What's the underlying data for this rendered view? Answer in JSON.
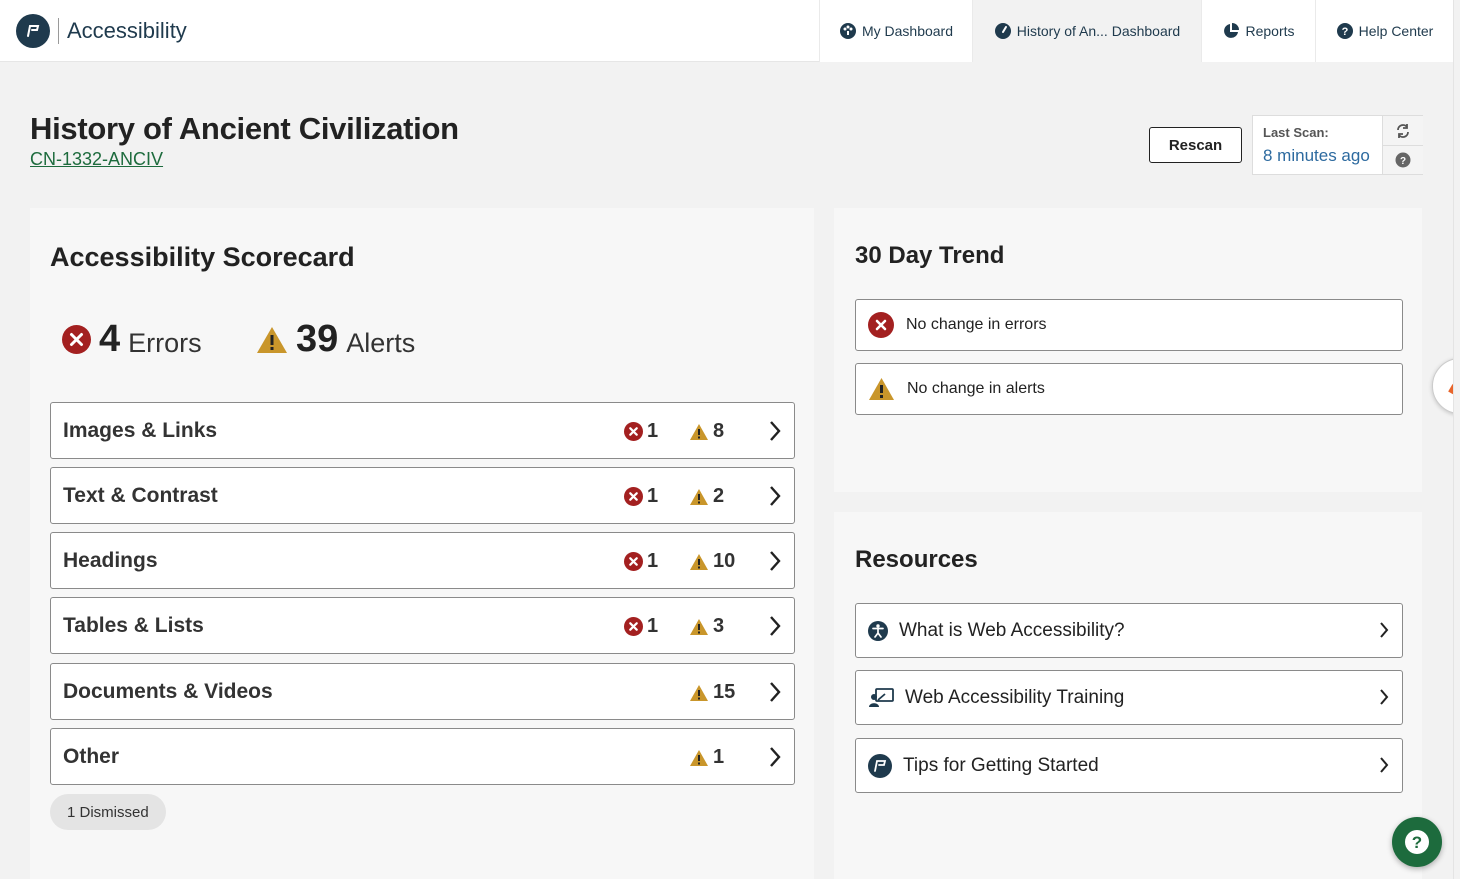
{
  "nav": {
    "brand_title": "Accessibility",
    "tabs": [
      {
        "label": "My Dashboard",
        "icon": "dashboard-icon"
      },
      {
        "label": "History of An... Dashboard",
        "icon": "gauge-icon"
      },
      {
        "label": "Reports",
        "icon": "pie-chart-icon"
      },
      {
        "label": "Help Center",
        "icon": "question-circle-icon"
      }
    ]
  },
  "header": {
    "title": "History of Ancient Civilization",
    "course_code": "CN-1332-ANCIV",
    "rescan_label": "Rescan",
    "last_scan_label": "Last Scan:",
    "last_scan_value": "8 minutes ago"
  },
  "scorecard": {
    "title": "Accessibility Scorecard",
    "errors_count": "4",
    "errors_word": "Errors",
    "alerts_count": "39",
    "alerts_word": "Alerts",
    "categories": [
      {
        "name": "Images & Links",
        "errors": "1",
        "alerts": "8"
      },
      {
        "name": "Text & Contrast",
        "errors": "1",
        "alerts": "2"
      },
      {
        "name": "Headings",
        "errors": "1",
        "alerts": "10"
      },
      {
        "name": "Tables & Lists",
        "errors": "1",
        "alerts": "3"
      },
      {
        "name": "Documents & Videos",
        "errors": "",
        "alerts": "15"
      },
      {
        "name": "Other",
        "errors": "",
        "alerts": "1"
      }
    ],
    "dismissed_label": "1 Dismissed"
  },
  "trend": {
    "title": "30 Day Trend",
    "errors_text": "No change in errors",
    "alerts_text": "No change in alerts"
  },
  "resources": {
    "title": "Resources",
    "items": [
      {
        "label": "What is Web Accessibility?",
        "icon": "accessibility-icon"
      },
      {
        "label": "Web Accessibility Training",
        "icon": "training-icon"
      },
      {
        "label": "Tips for Getting Started",
        "icon": "brand-logo-icon"
      }
    ]
  },
  "colors": {
    "error": "#a32020",
    "alert": "#c9962b",
    "brand": "#1f3a4d",
    "link": "#1d6b3d",
    "help": "#1d6b3d"
  }
}
